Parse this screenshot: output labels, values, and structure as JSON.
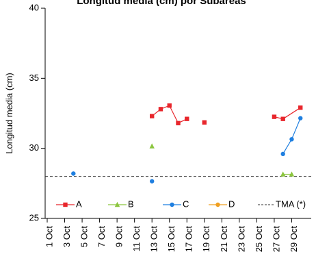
{
  "chart_data": {
    "type": "scatter",
    "title": "Longitud media (cm) por Subáreas",
    "xlabel": "",
    "ylabel": "Longitud media (cm)",
    "ylim": [
      25,
      40
    ],
    "yticks": [
      25,
      30,
      35,
      40
    ],
    "xlim": [
      "2023-10-01",
      "2023-10-31"
    ],
    "xticks": [
      {
        "date": "2023-10-01",
        "label": "1 Oct"
      },
      {
        "date": "2023-10-03",
        "label": "3 Oct"
      },
      {
        "date": "2023-10-05",
        "label": "5 Oct"
      },
      {
        "date": "2023-10-07",
        "label": "7 Oct"
      },
      {
        "date": "2023-10-09",
        "label": "9 Oct"
      },
      {
        "date": "2023-10-11",
        "label": "11 Oct"
      },
      {
        "date": "2023-10-13",
        "label": "13 Oct"
      },
      {
        "date": "2023-10-15",
        "label": "15 Oct"
      },
      {
        "date": "2023-10-17",
        "label": "17 Oct"
      },
      {
        "date": "2023-10-19",
        "label": "19 Oct"
      },
      {
        "date": "2023-10-21",
        "label": "21 Oct"
      },
      {
        "date": "2023-10-23",
        "label": "23 Oct"
      },
      {
        "date": "2023-10-25",
        "label": "25 Oct"
      },
      {
        "date": "2023-10-27",
        "label": "27 Oct"
      },
      {
        "date": "2023-10-29",
        "label": "29 Oct"
      }
    ],
    "grid": false,
    "legend_position": "bottom",
    "series": [
      {
        "name": "A",
        "color": "#e8262c",
        "marker": "square",
        "points": [
          {
            "x": "2023-10-13",
            "y": 32.3
          },
          {
            "x": "2023-10-14",
            "y": 32.8
          },
          {
            "x": "2023-10-15",
            "y": 33.05
          },
          {
            "x": "2023-10-16",
            "y": 31.8
          },
          {
            "x": "2023-10-17",
            "y": 32.1
          },
          {
            "x": "2023-10-19",
            "y": 31.85
          },
          {
            "x": "2023-10-27",
            "y": 32.25
          },
          {
            "x": "2023-10-28",
            "y": 32.1
          },
          {
            "x": "2023-10-30",
            "y": 32.9
          }
        ]
      },
      {
        "name": "B",
        "color": "#8cc63f",
        "marker": "triangle",
        "points": [
          {
            "x": "2023-10-13",
            "y": 30.15
          },
          {
            "x": "2023-10-28",
            "y": 28.15
          },
          {
            "x": "2023-10-29",
            "y": 28.15
          }
        ]
      },
      {
        "name": "C",
        "color": "#1f7fe0",
        "marker": "circle",
        "points": [
          {
            "x": "2023-10-04",
            "y": 28.2
          },
          {
            "x": "2023-10-13",
            "y": 27.65
          },
          {
            "x": "2023-10-28",
            "y": 29.6
          },
          {
            "x": "2023-10-29",
            "y": 30.65
          },
          {
            "x": "2023-10-30",
            "y": 32.15
          }
        ]
      },
      {
        "name": "D",
        "color": "#f0a020",
        "marker": "circle",
        "points": []
      }
    ],
    "reference_line": {
      "name": "TMA (*)",
      "y": 28,
      "color": "#333333"
    },
    "segment_breaks": [
      [
        "2023-10-17",
        "2023-10-19"
      ],
      [
        "2023-10-19",
        "2023-10-27"
      ]
    ]
  }
}
